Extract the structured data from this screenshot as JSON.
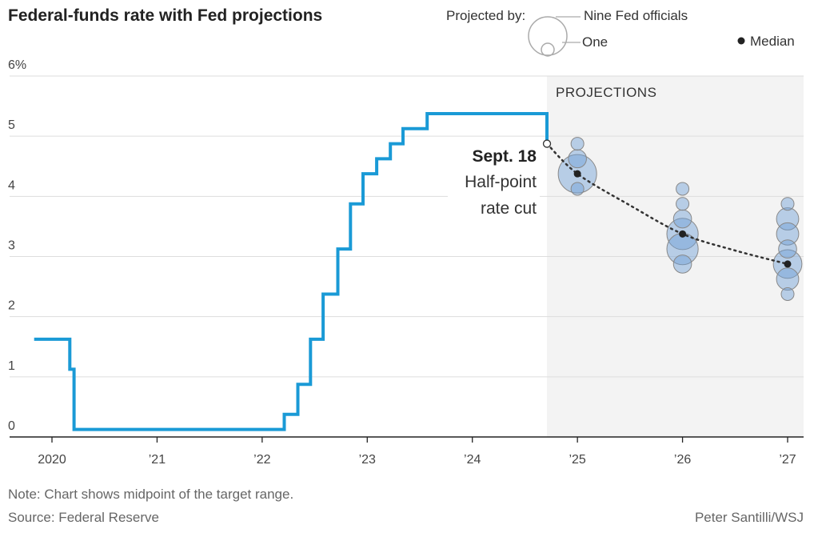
{
  "chart_data": {
    "type": "line",
    "title": "Federal-funds rate with Fed projections",
    "y_unit": "%",
    "ylim": [
      0,
      6
    ],
    "y_ticks": [
      0,
      1,
      2,
      3,
      4,
      5,
      6
    ],
    "y_tick_labels": [
      "0",
      "1",
      "2",
      "3",
      "4",
      "5",
      "6%"
    ],
    "xlim": [
      2019.75,
      2027.25
    ],
    "x_ticks": [
      2020,
      2021,
      2022,
      2023,
      2024,
      2025,
      2026,
      2027
    ],
    "x_tick_labels": [
      "2020",
      "’21",
      "’22",
      "’23",
      "’24",
      "’25",
      "’26",
      "’27"
    ],
    "grid": true,
    "series": [
      {
        "kind": "step-line",
        "color": "#1a9ad6",
        "points": [
          {
            "x": 2019.83,
            "y": 1.625
          },
          {
            "x": 2020.17,
            "y": 1.625
          },
          {
            "x": 2020.17,
            "y": 1.125
          },
          {
            "x": 2020.21,
            "y": 1.125
          },
          {
            "x": 2020.21,
            "y": 0.125
          },
          {
            "x": 2022.21,
            "y": 0.125
          },
          {
            "x": 2022.21,
            "y": 0.375
          },
          {
            "x": 2022.34,
            "y": 0.375
          },
          {
            "x": 2022.34,
            "y": 0.875
          },
          {
            "x": 2022.46,
            "y": 0.875
          },
          {
            "x": 2022.46,
            "y": 1.625
          },
          {
            "x": 2022.58,
            "y": 1.625
          },
          {
            "x": 2022.58,
            "y": 2.375
          },
          {
            "x": 2022.72,
            "y": 2.375
          },
          {
            "x": 2022.72,
            "y": 3.125
          },
          {
            "x": 2022.84,
            "y": 3.125
          },
          {
            "x": 2022.84,
            "y": 3.875
          },
          {
            "x": 2022.96,
            "y": 3.875
          },
          {
            "x": 2022.96,
            "y": 4.375
          },
          {
            "x": 2023.09,
            "y": 4.375
          },
          {
            "x": 2023.09,
            "y": 4.625
          },
          {
            "x": 2023.22,
            "y": 4.625
          },
          {
            "x": 2023.22,
            "y": 4.875
          },
          {
            "x": 2023.34,
            "y": 4.875
          },
          {
            "x": 2023.34,
            "y": 5.125
          },
          {
            "x": 2023.57,
            "y": 5.125
          },
          {
            "x": 2023.57,
            "y": 5.375
          },
          {
            "x": 2024.71,
            "y": 5.375
          },
          {
            "x": 2024.71,
            "y": 4.875
          }
        ]
      }
    ],
    "projection_region": {
      "x_start": 2024.71,
      "x_end": 2027.25,
      "label": "PROJECTIONS",
      "fill": "#f3f3f3"
    },
    "cut_marker": {
      "x": 2024.71,
      "y": 4.875
    },
    "dot_plot": [
      {
        "year": 2025,
        "rates": [
          {
            "rate": 4.875,
            "count": 1
          },
          {
            "rate": 4.625,
            "count": 2
          },
          {
            "rate": 4.375,
            "count": 9
          },
          {
            "rate": 4.125,
            "count": 1
          }
        ]
      },
      {
        "year": 2026,
        "rates": [
          {
            "rate": 4.125,
            "count": 1
          },
          {
            "rate": 3.875,
            "count": 1
          },
          {
            "rate": 3.625,
            "count": 2
          },
          {
            "rate": 3.375,
            "count": 6
          },
          {
            "rate": 3.125,
            "count": 6
          },
          {
            "rate": 2.875,
            "count": 2
          }
        ]
      },
      {
        "year": 2027,
        "rates": [
          {
            "rate": 3.875,
            "count": 1
          },
          {
            "rate": 3.625,
            "count": 3
          },
          {
            "rate": 3.375,
            "count": 3
          },
          {
            "rate": 3.125,
            "count": 2
          },
          {
            "rate": 2.875,
            "count": 5
          },
          {
            "rate": 2.625,
            "count": 3
          },
          {
            "rate": 2.375,
            "count": 1
          }
        ]
      }
    ],
    "median": [
      {
        "x": 2025,
        "y": 4.375
      },
      {
        "x": 2026,
        "y": 3.375
      },
      {
        "x": 2027,
        "y": 2.875
      }
    ],
    "median_path": [
      {
        "x": 2024.71,
        "y": 4.875
      },
      {
        "x": 2025.0,
        "y": 4.375
      },
      {
        "x": 2025.5,
        "y": 3.85
      },
      {
        "x": 2026.0,
        "y": 3.375
      },
      {
        "x": 2026.5,
        "y": 3.1
      },
      {
        "x": 2027.0,
        "y": 2.875
      }
    ],
    "legend": {
      "heading": "Projected by:",
      "nine_label": "Nine Fed officials",
      "one_label": "One",
      "median_label": "Median"
    },
    "annotation": {
      "bold": "Sept. 18",
      "line1": "Half-point",
      "line2": "rate cut"
    },
    "colors": {
      "line": "#1a9ad6",
      "bubble_fill": "rgba(110,160,215,0.45)",
      "bubble_stroke": "#888888",
      "median": "#222222",
      "grid": "#dddddd"
    }
  },
  "footer": {
    "note": "Note: Chart shows midpoint of the target range.",
    "source": "Source: Federal Reserve",
    "credit": "Peter Santilli/WSJ"
  }
}
